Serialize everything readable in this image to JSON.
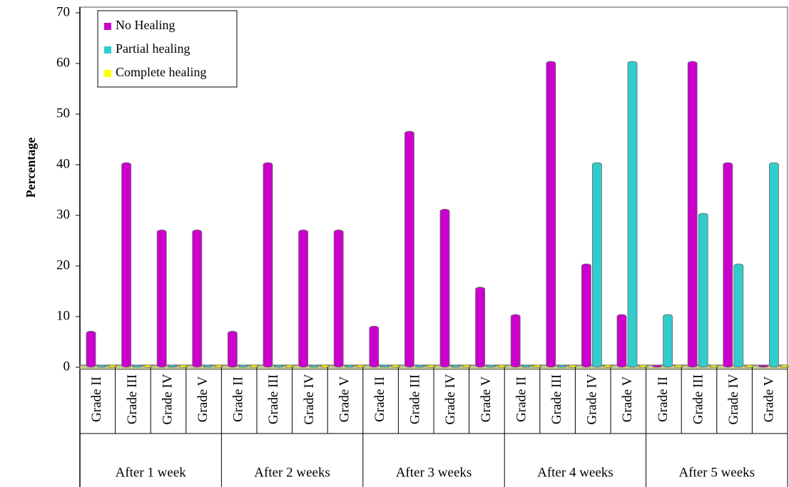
{
  "chart_data": {
    "type": "bar",
    "y_label": "Percentage",
    "categories": [
      "Grade II",
      "Grade III",
      "Grade IV",
      "Grade V",
      "Grade II",
      "Grade III",
      "Grade IV",
      "Grade V",
      "Grade II",
      "Grade III",
      "Grade IV",
      "Grade V",
      "Grade II",
      "Grade III",
      "Grade IV",
      "Grade V",
      "Grade II",
      "Grade III",
      "Grade IV",
      "Grade V"
    ],
    "groups": [
      "After 1 week",
      "After 2 weeks",
      "After 3 weeks",
      "After 4 weeks",
      "After 5 weeks"
    ],
    "series": [
      {
        "name": "No Healing",
        "color": "#cc00cc",
        "values": [
          6.7,
          40,
          26.7,
          26.7,
          6.7,
          40,
          26.7,
          26.7,
          7.7,
          46.2,
          30.8,
          15.4,
          10,
          60,
          20,
          10,
          0,
          60,
          40,
          0
        ]
      },
      {
        "name": "Partial healing",
        "color": "#33cccc",
        "values": [
          0,
          0,
          0,
          0,
          0,
          0,
          0,
          0,
          0,
          0,
          0,
          0,
          0,
          0,
          40,
          60,
          10,
          30,
          20,
          40
        ]
      },
      {
        "name": "Complete healing",
        "color": "#ffff00",
        "values": [
          0,
          0,
          0,
          0,
          0,
          0,
          0,
          0,
          0,
          0,
          0,
          0,
          0,
          0,
          0,
          0,
          0,
          0,
          0,
          0
        ]
      }
    ],
    "ylim": [
      0,
      70
    ],
    "yticks": [
      0,
      10,
      20,
      30,
      40,
      50,
      60,
      70
    ],
    "legend": "top-left"
  }
}
